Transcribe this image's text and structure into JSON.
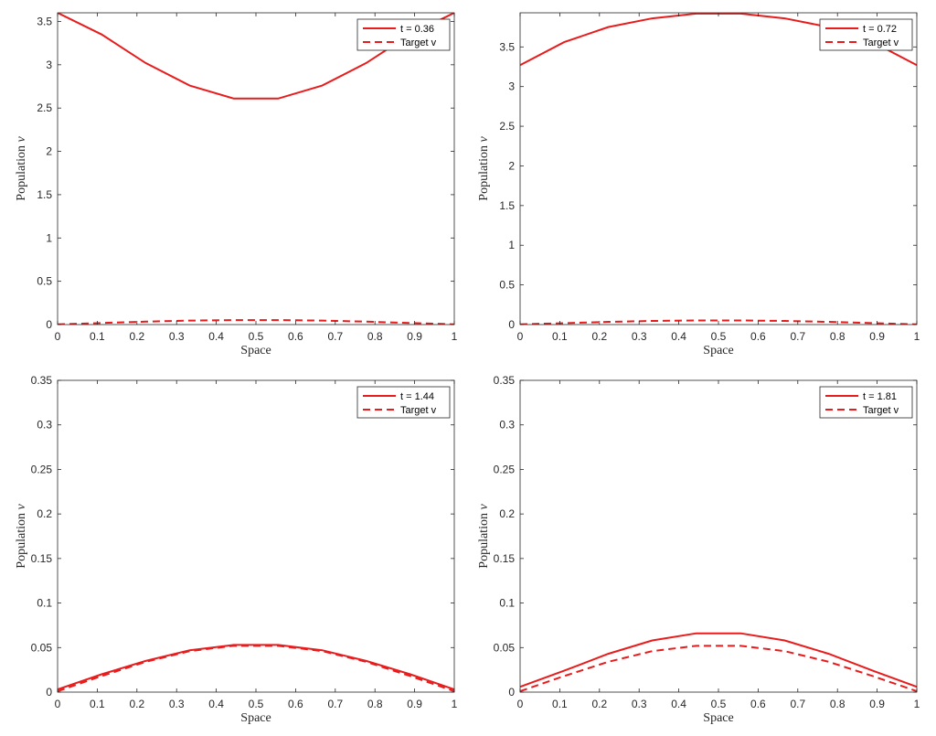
{
  "style": {
    "line_color": "#e81c1c",
    "axes_color": "#262626",
    "background": "#ffffff"
  },
  "chart_data": [
    {
      "type": "line",
      "xlabel": "Space",
      "ylabel": "Population",
      "ylabel_symbol": "v",
      "xlim": [
        0,
        1
      ],
      "ylim": [
        0,
        3.6
      ],
      "xticks": [
        0,
        0.1,
        0.2,
        0.3,
        0.4,
        0.5,
        0.6,
        0.7,
        0.8,
        0.9,
        1
      ],
      "xtick_labels": [
        "0",
        "0.1",
        "0.2",
        "0.3",
        "0.4",
        "0.5",
        "0.6",
        "0.7",
        "0.8",
        "0.9",
        "1"
      ],
      "yticks": [
        0,
        0.5,
        1,
        1.5,
        2,
        2.5,
        3,
        3.5
      ],
      "ytick_labels": [
        "0",
        "0.5",
        "1",
        "1.5",
        "2",
        "2.5",
        "3",
        "3.5"
      ],
      "grid": false,
      "legend": "top-right",
      "x": [
        0,
        0.111,
        0.222,
        0.333,
        0.444,
        0.556,
        0.667,
        0.778,
        0.889,
        1
      ],
      "series": [
        {
          "name": "t = 0.36",
          "style": "solid",
          "values": [
            3.6,
            3.35,
            3.02,
            2.76,
            2.61,
            2.61,
            2.76,
            3.02,
            3.35,
            3.6
          ]
        },
        {
          "name": "Target v",
          "style": "dashed",
          "values": [
            0.003,
            0.018,
            0.034,
            0.046,
            0.052,
            0.052,
            0.046,
            0.034,
            0.018,
            0.003
          ]
        }
      ]
    },
    {
      "type": "line",
      "xlabel": "Space",
      "ylabel": "Population",
      "ylabel_symbol": "v",
      "xlim": [
        0,
        1
      ],
      "ylim": [
        0,
        3.93
      ],
      "xticks": [
        0,
        0.1,
        0.2,
        0.3,
        0.4,
        0.5,
        0.6,
        0.7,
        0.8,
        0.9,
        1
      ],
      "xtick_labels": [
        "0",
        "0.1",
        "0.2",
        "0.3",
        "0.4",
        "0.5",
        "0.6",
        "0.7",
        "0.8",
        "0.9",
        "1"
      ],
      "yticks": [
        0,
        0.5,
        1,
        1.5,
        2,
        2.5,
        3,
        3.5
      ],
      "ytick_labels": [
        "0",
        "0.5",
        "1",
        "1.5",
        "2",
        "2.5",
        "3",
        "3.5"
      ],
      "grid": false,
      "legend": "top-right",
      "x": [
        0,
        0.111,
        0.222,
        0.333,
        0.444,
        0.556,
        0.667,
        0.778,
        0.889,
        1
      ],
      "series": [
        {
          "name": "t = 0.72",
          "style": "solid",
          "values": [
            3.27,
            3.56,
            3.75,
            3.86,
            3.92,
            3.92,
            3.86,
            3.75,
            3.56,
            3.27
          ]
        },
        {
          "name": "Target v",
          "style": "dashed",
          "values": [
            0.003,
            0.018,
            0.034,
            0.046,
            0.052,
            0.052,
            0.046,
            0.034,
            0.018,
            0.003
          ]
        }
      ]
    },
    {
      "type": "line",
      "xlabel": "Space",
      "ylabel": "Population",
      "ylabel_symbol": "v",
      "xlim": [
        0,
        1
      ],
      "ylim": [
        0,
        0.35
      ],
      "xticks": [
        0,
        0.1,
        0.2,
        0.3,
        0.4,
        0.5,
        0.6,
        0.7,
        0.8,
        0.9,
        1
      ],
      "xtick_labels": [
        "0",
        "0.1",
        "0.2",
        "0.3",
        "0.4",
        "0.5",
        "0.6",
        "0.7",
        "0.8",
        "0.9",
        "1"
      ],
      "yticks": [
        0,
        0.05,
        0.1,
        0.15,
        0.2,
        0.25,
        0.3,
        0.35
      ],
      "ytick_labels": [
        "0",
        "0.05",
        "0.1",
        "0.15",
        "0.2",
        "0.25",
        "0.3",
        "0.35"
      ],
      "grid": false,
      "legend": "top-right",
      "x": [
        0,
        0.111,
        0.222,
        0.333,
        0.444,
        0.556,
        0.667,
        0.778,
        0.889,
        1
      ],
      "series": [
        {
          "name": "t = 1.44",
          "style": "solid",
          "values": [
            0.003,
            0.02,
            0.035,
            0.047,
            0.053,
            0.053,
            0.047,
            0.035,
            0.02,
            0.003
          ]
        },
        {
          "name": "Target v",
          "style": "dashed",
          "values": [
            0.001,
            0.018,
            0.034,
            0.046,
            0.052,
            0.052,
            0.046,
            0.034,
            0.018,
            0.001
          ]
        }
      ]
    },
    {
      "type": "line",
      "xlabel": "Space",
      "ylabel": "Population",
      "ylabel_symbol": "v",
      "xlim": [
        0,
        1
      ],
      "ylim": [
        0,
        0.35
      ],
      "xticks": [
        0,
        0.1,
        0.2,
        0.3,
        0.4,
        0.5,
        0.6,
        0.7,
        0.8,
        0.9,
        1
      ],
      "xtick_labels": [
        "0",
        "0.1",
        "0.2",
        "0.3",
        "0.4",
        "0.5",
        "0.6",
        "0.7",
        "0.8",
        "0.9",
        "1"
      ],
      "yticks": [
        0,
        0.05,
        0.1,
        0.15,
        0.2,
        0.25,
        0.3,
        0.35
      ],
      "ytick_labels": [
        "0",
        "0.05",
        "0.1",
        "0.15",
        "0.2",
        "0.25",
        "0.3",
        "0.35"
      ],
      "grid": false,
      "legend": "top-right",
      "x": [
        0,
        0.111,
        0.222,
        0.333,
        0.444,
        0.556,
        0.667,
        0.778,
        0.889,
        1
      ],
      "series": [
        {
          "name": "t = 1.81",
          "style": "solid",
          "values": [
            0.006,
            0.024,
            0.043,
            0.058,
            0.066,
            0.066,
            0.058,
            0.043,
            0.024,
            0.006
          ]
        },
        {
          "name": "Target v",
          "style": "dashed",
          "values": [
            0.001,
            0.018,
            0.034,
            0.046,
            0.052,
            0.052,
            0.046,
            0.034,
            0.018,
            0.001
          ]
        }
      ]
    }
  ]
}
